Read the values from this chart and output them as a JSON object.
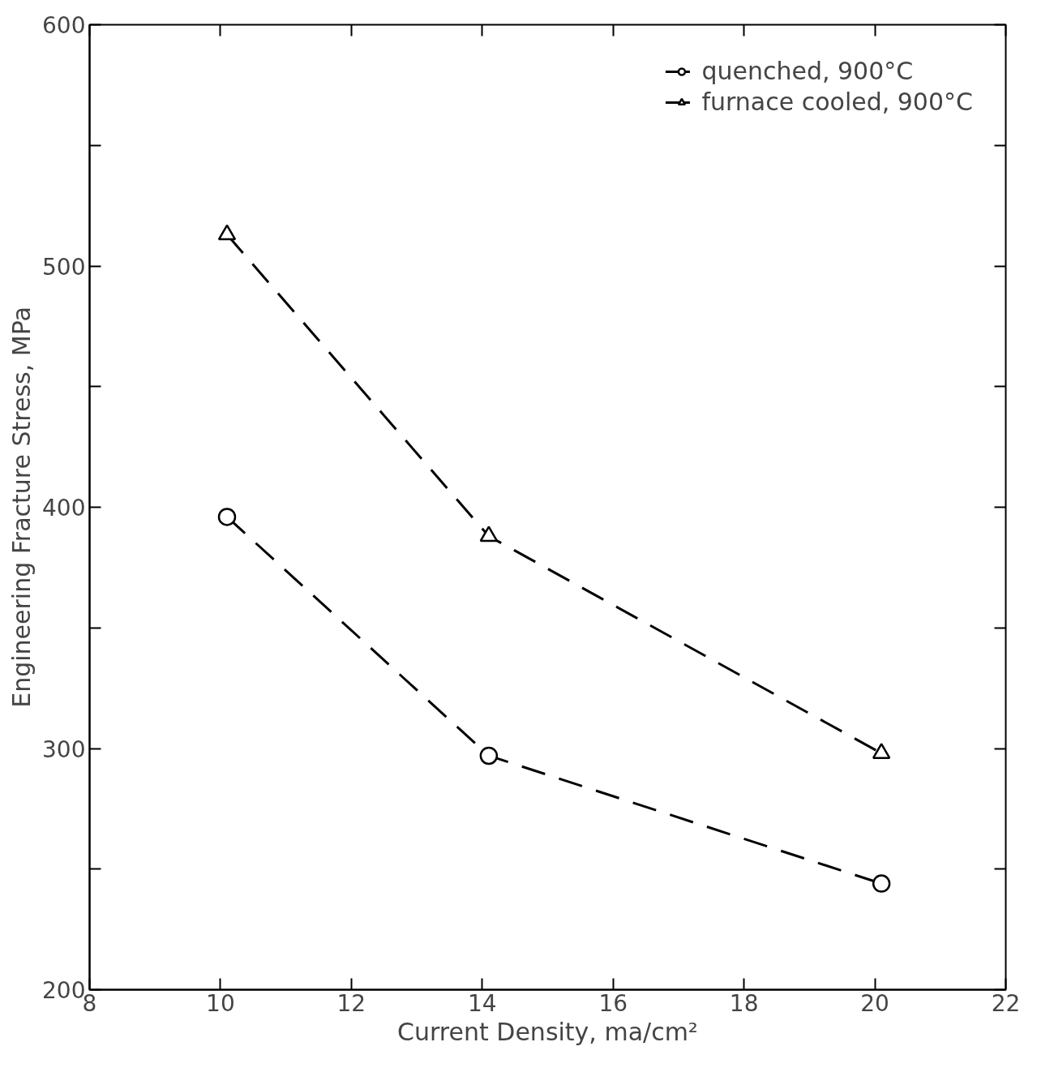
{
  "chart_data": {
    "type": "line",
    "xlabel": "Current Density, ma/cm²",
    "ylabel": "Engineering Fracture Stress, MPa",
    "x": [
      10.1,
      14.1,
      20.1
    ],
    "series": [
      {
        "name": "furnace cooled, 900°C",
        "color": "#000000",
        "marker": "triangle",
        "values": [
          513,
          388,
          298
        ]
      },
      {
        "name": "quenched, 900°C",
        "color": "#000000",
        "marker": "circle",
        "values": [
          396,
          297,
          244
        ]
      }
    ],
    "xlim": [
      8,
      22
    ],
    "xticks": [
      8,
      10,
      12,
      14,
      16,
      18,
      20,
      22
    ],
    "ylim": [
      200,
      600
    ],
    "yticks": [
      200,
      {
        "value": 250,
        "label": null
      },
      300,
      {
        "value": 350,
        "label": null
      },
      400,
      {
        "value": 450,
        "label": null
      },
      500,
      {
        "value": 550,
        "label": null
      },
      600
    ],
    "line_style": "dashed",
    "grid": false,
    "legend": "top right"
  }
}
